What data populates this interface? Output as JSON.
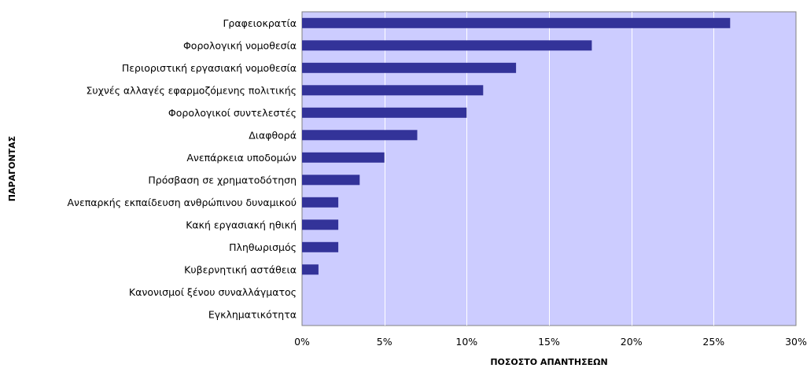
{
  "chart_data": {
    "type": "bar",
    "orientation": "horizontal",
    "categories": [
      "Γραφειοκρατία",
      "Φορολογική νομοθεσία",
      "Περιοριστική εργασιακή νομοθεσία",
      "Συχνές αλλαγές εφαρμοζόμενης πολιτικής",
      "Φορολογικοί συντελεστές",
      "Διαφθορά",
      "Ανεπάρκεια υποδομών",
      "Πρόσβαση σε χρηματοδότηση",
      "Ανεπαρκής εκπαίδευση ανθρώπινου δυναμικού",
      "Κακή εργασιακή ηθική",
      "Πληθωρισμός",
      "Κυβερνητική αστάθεια",
      "Κανονισμοί ξένου συναλλάγματος",
      "Εγκληματικότητα"
    ],
    "values": [
      26.0,
      17.6,
      13.0,
      11.0,
      10.0,
      7.0,
      5.0,
      3.5,
      2.2,
      2.2,
      2.2,
      1.0,
      0,
      0
    ],
    "xlim": [
      0,
      30
    ],
    "xticks": [
      0,
      5,
      10,
      15,
      20,
      25,
      30
    ],
    "xtick_labels": [
      "0%",
      "5%",
      "10%",
      "15%",
      "20%",
      "25%",
      "30%"
    ],
    "xlabel": "ΠΟΣΟΣΤΟ ΑΠΑΝΤΗΣΕΩΝ",
    "ylabel": "ΠΑΡΑΓΟΝΤΑΣ",
    "grid": "vertical",
    "legend": "none",
    "colors": {
      "plot_background": "#ccccff",
      "bar": "#333399",
      "gridline": "#ffffff",
      "axis": "#808080"
    }
  }
}
